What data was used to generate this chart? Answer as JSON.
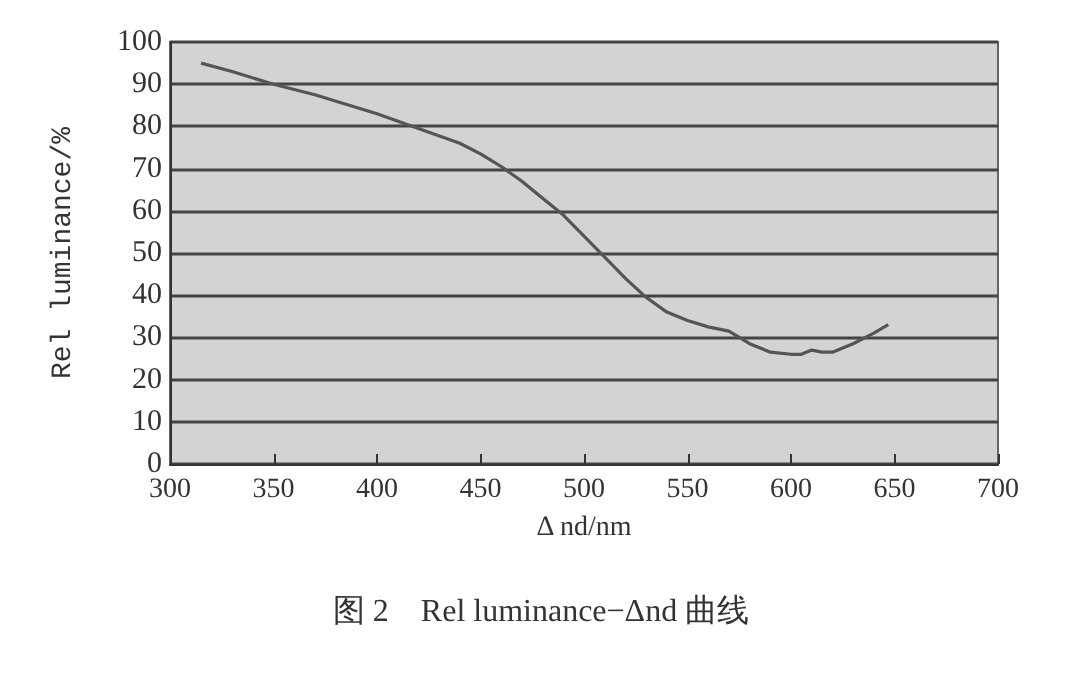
{
  "chart_data": {
    "type": "line",
    "xlabel": "Δ nd/nm",
    "ylabel": "Rel luminance/%",
    "annotations": [
      "图 2　Rel luminance−Δnd 曲线"
    ],
    "x": [
      315,
      330,
      350,
      370,
      400,
      420,
      440,
      450,
      460,
      470,
      480,
      490,
      500,
      510,
      520,
      530,
      540,
      550,
      560,
      570,
      580,
      590,
      600,
      605,
      610,
      615,
      620,
      630,
      640,
      647
    ],
    "series": [
      {
        "color": "#555555",
        "values": [
          95,
          93,
          90,
          87.5,
          83,
          79.5,
          76,
          73.5,
          70.5,
          67,
          63,
          59,
          54,
          49,
          44,
          39.5,
          36,
          34,
          32.5,
          31.5,
          28.5,
          26.5,
          26,
          26,
          27,
          26.5,
          26.5,
          28.5,
          31,
          33
        ]
      }
    ],
    "xlim": [
      300,
      700
    ],
    "xticks": [
      300,
      350,
      400,
      450,
      500,
      550,
      600,
      650,
      700
    ],
    "ylim": [
      0,
      100
    ],
    "yticks": [
      0,
      10,
      20,
      30,
      40,
      50,
      60,
      70,
      80,
      90,
      100
    ],
    "grid": "y",
    "marker": "none",
    "line_style": "solid"
  }
}
